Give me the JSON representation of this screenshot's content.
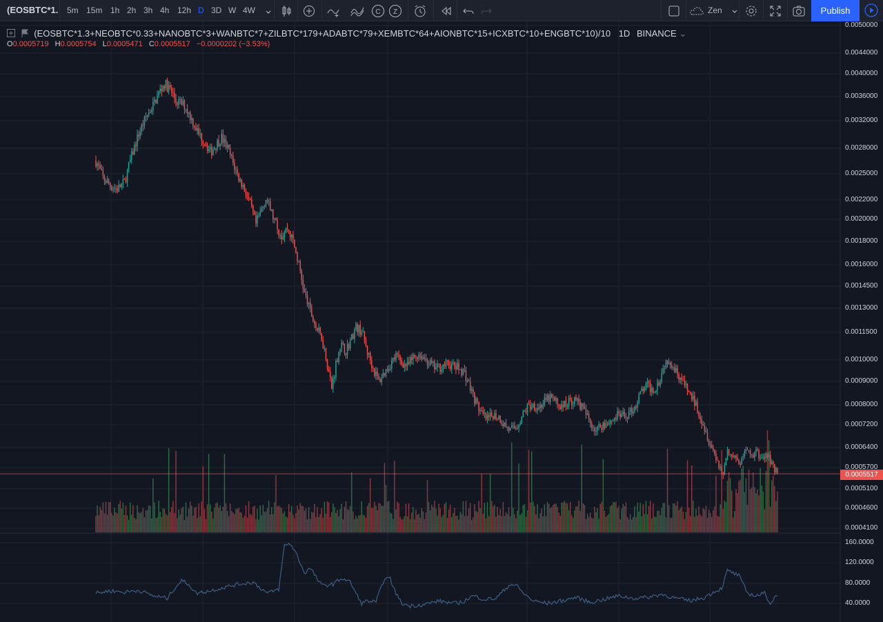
{
  "toolbar": {
    "symbol": "(EOSBTC*1.",
    "timeframes": [
      "5m",
      "15m",
      "1h",
      "2h",
      "3h",
      "4h",
      "12h",
      "D",
      "3D",
      "W",
      "4W"
    ],
    "active_timeframe": "D",
    "theme": "Zen",
    "publish_label": "Publish",
    "icons": [
      "candles-icon",
      "add-indicator-icon",
      "compare-icon",
      "fx-icon",
      "c-icon",
      "z-icon",
      "alert-icon",
      "replay-icon",
      "undo-icon",
      "redo-icon",
      "fullscreen-box-icon",
      "cloud-icon",
      "gear-icon",
      "expand-icon",
      "camera-icon",
      "play-icon"
    ]
  },
  "legend": {
    "title": "(EOSBTC*1.3+NEOBTC*0.33+NANOBTC*3+WANBTC*7+ZILBTC*179+ADABTC*79+XEMBTC*64+AIONBTC*15+ICXBTC*10+ENGBTC*10)/10",
    "interval": "1D",
    "exchange": "BINANCE",
    "o_key": "O",
    "o": "0.0005719",
    "h_key": "H",
    "h": "0.0005754",
    "l_key": "L",
    "l": "0.0005471",
    "c_key": "C",
    "c": "0.0005517",
    "change": "−0.0000202 (−3.53%)"
  },
  "price_axis": [
    "0.0050000",
    "0.0044000",
    "0.0040000",
    "0.0036000",
    "0.0032000",
    "0.0028000",
    "0.0025000",
    "0.0022000",
    "0.0020000",
    "0.0018000",
    "0.0016000",
    "0.0014500",
    "0.0013000",
    "0.0011500",
    "0.0010000",
    "0.0009000",
    "0.0008000",
    "0.0007200",
    "0.0006400",
    "0.0005700",
    "0.0005100",
    "0.0004600",
    "0.0004100"
  ],
  "last_price": "0.0005517",
  "indicator_axis": [
    "160.0000",
    "120.0000",
    "80.0000",
    "40.0000"
  ],
  "colors": {
    "up": "#26a69a",
    "down": "#ef5350",
    "vol_up": "#2e6b45",
    "vol_down": "#8a3a42",
    "indicator": "#3d5f87",
    "bg": "#131722",
    "grid": "#1f2430"
  },
  "chart_data": {
    "type": "candlestick",
    "scale": "log",
    "ylim": [
      0.00038,
      0.0052
    ],
    "closes_anchor": [
      [
        0,
        0.00265
      ],
      [
        5,
        0.00245
      ],
      [
        10,
        0.00236
      ],
      [
        15,
        0.00232
      ],
      [
        20,
        0.0024
      ],
      [
        25,
        0.0027
      ],
      [
        30,
        0.003
      ],
      [
        35,
        0.00325
      ],
      [
        40,
        0.00345
      ],
      [
        45,
        0.0037
      ],
      [
        48,
        0.00382
      ],
      [
        52,
        0.00372
      ],
      [
        56,
        0.00352
      ],
      [
        62,
        0.00345
      ],
      [
        68,
        0.00318
      ],
      [
        72,
        0.003
      ],
      [
        76,
        0.0029
      ],
      [
        80,
        0.00275
      ],
      [
        84,
        0.00285
      ],
      [
        88,
        0.00295
      ],
      [
        92,
        0.0028
      ],
      [
        96,
        0.00262
      ],
      [
        100,
        0.00245
      ],
      [
        104,
        0.00232
      ],
      [
        108,
        0.00215
      ],
      [
        112,
        0.00195
      ],
      [
        116,
        0.0021
      ],
      [
        119,
        0.00222
      ],
      [
        122,
        0.0021
      ],
      [
        126,
        0.00195
      ],
      [
        130,
        0.00185
      ],
      [
        134,
        0.00192
      ],
      [
        138,
        0.0018
      ],
      [
        142,
        0.0016
      ],
      [
        146,
        0.0014
      ],
      [
        150,
        0.00128
      ],
      [
        154,
        0.00118
      ],
      [
        158,
        0.00112
      ],
      [
        162,
        0.00098
      ],
      [
        165,
        0.00087
      ],
      [
        168,
        0.00098
      ],
      [
        171,
        0.00108
      ],
      [
        175,
        0.00105
      ],
      [
        178,
        0.0011
      ],
      [
        182,
        0.00118
      ],
      [
        186,
        0.00116
      ],
      [
        190,
        0.00104
      ],
      [
        194,
        0.00096
      ],
      [
        198,
        0.0009
      ],
      [
        202,
        0.00094
      ],
      [
        206,
        0.00098
      ],
      [
        210,
        0.00102
      ],
      [
        214,
        0.00099
      ],
      [
        218,
        0.00097
      ],
      [
        222,
        0.00101
      ],
      [
        226,
        0.00103
      ],
      [
        230,
        0.00101
      ],
      [
        234,
        0.00098
      ],
      [
        238,
        0.00096
      ],
      [
        242,
        0.00097
      ],
      [
        246,
        0.00098
      ],
      [
        250,
        0.00097
      ],
      [
        254,
        0.00096
      ],
      [
        258,
        0.00094
      ],
      [
        262,
        0.00087
      ],
      [
        266,
        0.00081
      ],
      [
        270,
        0.00076
      ],
      [
        274,
        0.00074
      ],
      [
        278,
        0.00076
      ],
      [
        282,
        0.00075
      ],
      [
        286,
        0.00072
      ],
      [
        290,
        0.0007
      ],
      [
        294,
        0.00071
      ],
      [
        298,
        0.00075
      ],
      [
        302,
        0.00079
      ],
      [
        306,
        0.0008
      ],
      [
        310,
        0.00079
      ],
      [
        314,
        0.00081
      ],
      [
        318,
        0.00083
      ],
      [
        322,
        0.00081
      ],
      [
        326,
        0.00079
      ],
      [
        330,
        0.00081
      ],
      [
        334,
        0.00082
      ],
      [
        338,
        0.00081
      ],
      [
        342,
        0.00077
      ],
      [
        346,
        0.00073
      ],
      [
        350,
        0.0007
      ],
      [
        354,
        0.00072
      ],
      [
        358,
        0.00073
      ],
      [
        362,
        0.00074
      ],
      [
        366,
        0.00076
      ],
      [
        370,
        0.00075
      ],
      [
        374,
        0.00077
      ],
      [
        378,
        0.0008
      ],
      [
        382,
        0.00086
      ],
      [
        386,
        0.00088
      ],
      [
        390,
        0.00086
      ],
      [
        394,
        0.0009
      ],
      [
        398,
        0.00098
      ],
      [
        401,
        0.00101
      ],
      [
        404,
        0.00097
      ],
      [
        408,
        0.00093
      ],
      [
        412,
        0.00088
      ],
      [
        416,
        0.00084
      ],
      [
        420,
        0.0008
      ],
      [
        424,
        0.00074
      ],
      [
        428,
        0.00068
      ],
      [
        432,
        0.00063
      ],
      [
        436,
        0.00058
      ],
      [
        439,
        0.00055
      ],
      [
        442,
        0.00063
      ],
      [
        446,
        0.00061
      ],
      [
        450,
        0.00058
      ],
      [
        454,
        0.00062
      ],
      [
        458,
        0.00061
      ],
      [
        462,
        0.00062
      ],
      [
        466,
        0.0006
      ],
      [
        470,
        0.00061
      ],
      [
        474,
        0.00058
      ],
      [
        477,
        0.00055
      ]
    ],
    "indicator_anchor": [
      [
        0,
        60
      ],
      [
        10,
        65
      ],
      [
        20,
        62
      ],
      [
        30,
        66
      ],
      [
        40,
        55
      ],
      [
        50,
        50
      ],
      [
        55,
        70
      ],
      [
        60,
        85
      ],
      [
        65,
        78
      ],
      [
        70,
        60
      ],
      [
        80,
        65
      ],
      [
        90,
        72
      ],
      [
        100,
        78
      ],
      [
        110,
        82
      ],
      [
        120,
        60
      ],
      [
        128,
        68
      ],
      [
        132,
        155
      ],
      [
        136,
        158
      ],
      [
        140,
        140
      ],
      [
        146,
        100
      ],
      [
        150,
        110
      ],
      [
        158,
        75
      ],
      [
        166,
        78
      ],
      [
        172,
        90
      ],
      [
        178,
        82
      ],
      [
        182,
        60
      ],
      [
        186,
        40
      ],
      [
        190,
        45
      ],
      [
        196,
        42
      ],
      [
        202,
        90
      ],
      [
        206,
        88
      ],
      [
        210,
        60
      ],
      [
        214,
        40
      ],
      [
        220,
        35
      ],
      [
        230,
        38
      ],
      [
        240,
        45
      ],
      [
        250,
        40
      ],
      [
        256,
        42
      ],
      [
        264,
        55
      ],
      [
        272,
        48
      ],
      [
        280,
        50
      ],
      [
        290,
        78
      ],
      [
        294,
        76
      ],
      [
        300,
        58
      ],
      [
        306,
        45
      ],
      [
        316,
        40
      ],
      [
        326,
        45
      ],
      [
        336,
        52
      ],
      [
        346,
        42
      ],
      [
        356,
        48
      ],
      [
        366,
        55
      ],
      [
        376,
        50
      ],
      [
        386,
        52
      ],
      [
        396,
        58
      ],
      [
        406,
        50
      ],
      [
        416,
        45
      ],
      [
        426,
        52
      ],
      [
        432,
        62
      ],
      [
        438,
        70
      ],
      [
        442,
        105
      ],
      [
        446,
        100
      ],
      [
        450,
        95
      ],
      [
        456,
        60
      ],
      [
        462,
        55
      ],
      [
        468,
        60
      ],
      [
        472,
        40
      ],
      [
        477,
        58
      ]
    ]
  }
}
